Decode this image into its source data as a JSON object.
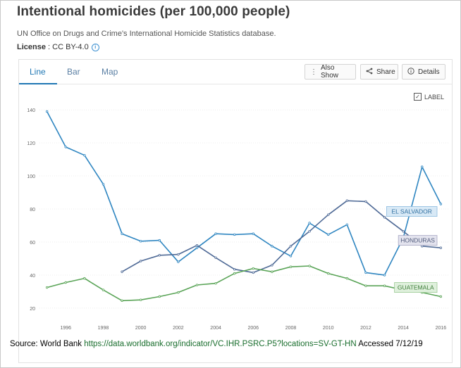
{
  "title": "Intentional homicides (per 100,000 people)",
  "source": "UN Office on Drugs and Crime's International Homicide Statistics database.",
  "license": {
    "label": "License",
    "value": " : CC BY-4.0"
  },
  "tabs": [
    {
      "label": "Line",
      "active": true
    },
    {
      "label": "Bar",
      "active": false
    },
    {
      "label": "Map",
      "active": false
    }
  ],
  "buttons": {
    "also_show": "Also Show",
    "share": "Share",
    "details": "Details"
  },
  "label_toggle": {
    "text": "LABEL",
    "checked": true
  },
  "footer": {
    "prefix": "Source: World Bank  ",
    "url": "https://data.worldbank.org/indicator/VC.IHR.PSRC.P5?locations=SV-GT-HN",
    "accessed": "   Accessed 7/12/19"
  },
  "colors": {
    "el_salvador": "#2f86c1",
    "honduras": "#4f6a96",
    "guatemala": "#5aa457",
    "accent": "#1f77b4"
  },
  "chart_data": {
    "type": "line",
    "title": "",
    "xlabel": "",
    "ylabel": "",
    "xlim": [
      1994.6,
      2016.4
    ],
    "ylim": [
      14,
      146
    ],
    "yticks": [
      20,
      40,
      60,
      80,
      100,
      120,
      140
    ],
    "xticks": [
      1996,
      1998,
      2000,
      2002,
      2004,
      2006,
      2008,
      2010,
      2012,
      2014,
      2016
    ],
    "grid": true,
    "series": [
      {
        "name": "EL SALVADOR",
        "color": "#2f86c1",
        "x": [
          1995,
          1996,
          1997,
          1998,
          1999,
          2000,
          2001,
          2002,
          2003,
          2004,
          2005,
          2006,
          2007,
          2008,
          2009,
          2010,
          2011,
          2012,
          2013,
          2014,
          2015,
          2016
        ],
        "values": [
          139.0,
          117.5,
          112.5,
          95.0,
          65.0,
          60.5,
          61.0,
          48.0,
          56.5,
          65.0,
          64.5,
          65.0,
          57.5,
          51.5,
          71.5,
          64.5,
          70.5,
          41.5,
          40.0,
          62.5,
          105.5,
          83.0
        ]
      },
      {
        "name": "HONDURAS",
        "color": "#4f6a96",
        "x": [
          1999,
          2000,
          2001,
          2002,
          2003,
          2004,
          2005,
          2006,
          2007,
          2008,
          2009,
          2010,
          2011,
          2012,
          2013,
          2014,
          2015,
          2016
        ],
        "values": [
          42.0,
          48.5,
          52.0,
          52.5,
          58.0,
          50.5,
          43.5,
          41.5,
          46.0,
          57.5,
          66.5,
          76.5,
          85.0,
          84.5,
          75.0,
          66.5,
          57.5,
          56.5
        ]
      },
      {
        "name": "GUATEMALA",
        "color": "#5aa457",
        "x": [
          1995,
          1996,
          1997,
          1998,
          1999,
          2000,
          2001,
          2002,
          2003,
          2004,
          2005,
          2006,
          2007,
          2008,
          2009,
          2010,
          2011,
          2012,
          2013,
          2014,
          2015,
          2016
        ],
        "values": [
          32.5,
          35.5,
          38.0,
          31.0,
          24.5,
          25.0,
          27.0,
          29.5,
          34.0,
          35.0,
          41.0,
          44.0,
          42.0,
          45.0,
          45.5,
          41.0,
          38.0,
          33.5,
          33.5,
          31.0,
          29.5,
          27.0
        ]
      }
    ],
    "labels": [
      {
        "text": "EL SALVADOR",
        "series": "EL SALVADOR",
        "bg": "#d8e9f6",
        "border": "#8dbbe0",
        "color": "#2f6fa0"
      },
      {
        "text": "HONDURAS",
        "series": "HONDURAS",
        "bg": "#e3e3ee",
        "border": "#a7a7c2",
        "color": "#4f5a7a"
      },
      {
        "text": "GUATEMALA",
        "series": "GUATEMALA",
        "bg": "#dff0dc",
        "border": "#9cc995",
        "color": "#3e7d3a"
      }
    ]
  }
}
